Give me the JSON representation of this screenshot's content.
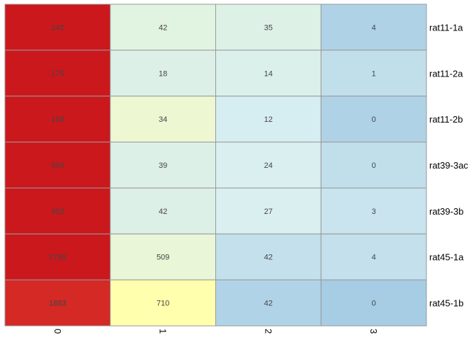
{
  "chart_data": {
    "type": "heatmap",
    "title": "",
    "xlabel": "",
    "ylabel": "",
    "x_categories": [
      "0",
      "1",
      "2",
      "3"
    ],
    "y_categories": [
      "rat11-1a",
      "rat11-2a",
      "rat11-2b",
      "rat39-3ac",
      "rat39-3b",
      "rat45-1a",
      "rat45-1b"
    ],
    "values": [
      [
        242,
        42,
        35,
        4
      ],
      [
        175,
        18,
        14,
        1
      ],
      [
        158,
        34,
        12,
        0
      ],
      [
        594,
        39,
        24,
        0
      ],
      [
        453,
        42,
        27,
        3
      ],
      [
        2769,
        509,
        42,
        4
      ],
      [
        1883,
        710,
        42,
        0
      ]
    ],
    "cell_colors": [
      [
        "#cb181d",
        "#e1f3e1",
        "#ddf1e7",
        "#afd2e7"
      ],
      [
        "#cb181d",
        "#ddf0e8",
        "#dbf0eb",
        "#c1dfeb"
      ],
      [
        "#cb181d",
        "#edf8d3",
        "#d6edf2",
        "#afd2e7"
      ],
      [
        "#cb181d",
        "#ddf0e8",
        "#d9eff0",
        "#c1dfeb"
      ],
      [
        "#cb181d",
        "#ddf0e8",
        "#d9eff0",
        "#c9e4ef"
      ],
      [
        "#cb181d",
        "#e9f6d8",
        "#c3e0ec",
        "#c3e0ec"
      ],
      [
        "#d42924",
        "#ffffad",
        "#b0d3e7",
        "#a6cde4"
      ]
    ],
    "grid_color": "#999999",
    "cell_label_color": "#444444",
    "legend": "none"
  }
}
